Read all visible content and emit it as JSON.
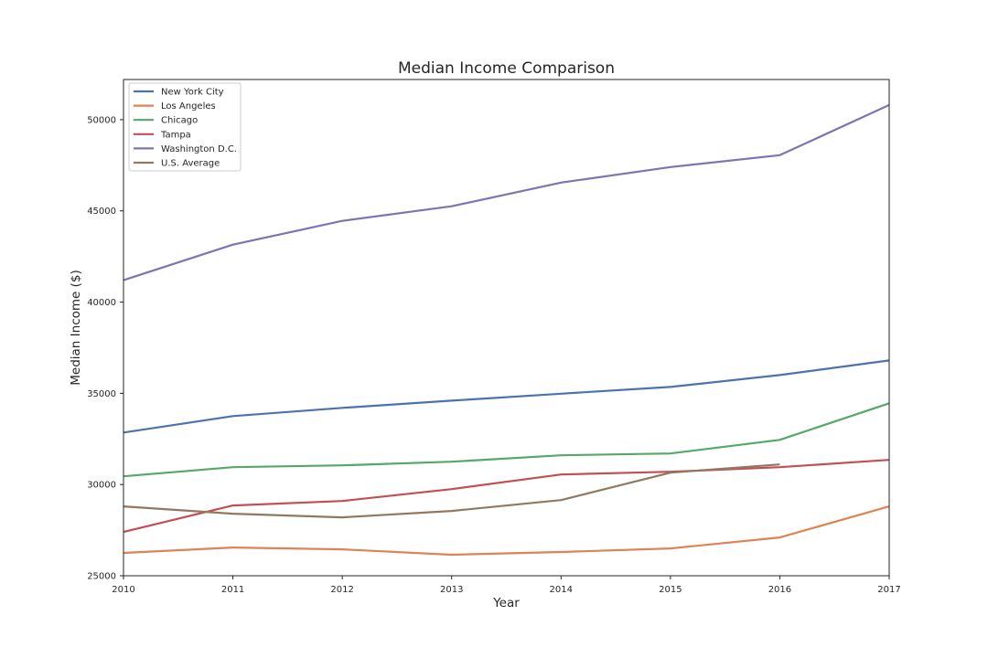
{
  "chart_data": {
    "type": "line",
    "title": "Median Income Comparison",
    "xlabel": "Year",
    "ylabel": "Median Income ($)",
    "xlim": [
      2010,
      2017
    ],
    "ylim": [
      25000,
      52200
    ],
    "xticks": [
      "2010",
      "2011",
      "2012",
      "2013",
      "2014",
      "2015",
      "2016",
      "2017"
    ],
    "yticks": [
      "25000",
      "30000",
      "35000",
      "40000",
      "45000",
      "50000"
    ],
    "grid": false,
    "legend_position": "top-left",
    "series": [
      {
        "name": "New York City",
        "color": "#4c72b0",
        "x": [
          2010,
          2011,
          2012,
          2013,
          2014,
          2015,
          2016,
          2017
        ],
        "values": [
          32850,
          33750,
          34200,
          34600,
          34980,
          35350,
          36000,
          36800
        ]
      },
      {
        "name": "Los Angeles",
        "color": "#dd8452",
        "x": [
          2010,
          2011,
          2012,
          2013,
          2014,
          2015,
          2016,
          2017
        ],
        "values": [
          26250,
          26550,
          26450,
          26150,
          26300,
          26500,
          27100,
          28800
        ]
      },
      {
        "name": "Chicago",
        "color": "#55a868",
        "x": [
          2010,
          2011,
          2012,
          2013,
          2014,
          2015,
          2016,
          2017
        ],
        "values": [
          30450,
          30950,
          31050,
          31250,
          31600,
          31700,
          32450,
          34450
        ]
      },
      {
        "name": "Tampa",
        "color": "#c44e52",
        "x": [
          2010,
          2011,
          2012,
          2013,
          2014,
          2015,
          2016,
          2017
        ],
        "values": [
          27400,
          28850,
          29100,
          29750,
          30550,
          30700,
          30950,
          31350
        ]
      },
      {
        "name": "Washington D.C.",
        "color": "#8172b3",
        "x": [
          2010,
          2011,
          2012,
          2013,
          2014,
          2015,
          2016,
          2017
        ],
        "values": [
          41200,
          43150,
          44450,
          45250,
          46550,
          47400,
          48050,
          50800
        ]
      },
      {
        "name": "U.S. Average",
        "color": "#937860",
        "x": [
          2010,
          2011,
          2012,
          2013,
          2014,
          2015,
          2016
        ],
        "values": [
          28800,
          28400,
          28200,
          28550,
          29150,
          30650,
          31100
        ]
      }
    ]
  }
}
